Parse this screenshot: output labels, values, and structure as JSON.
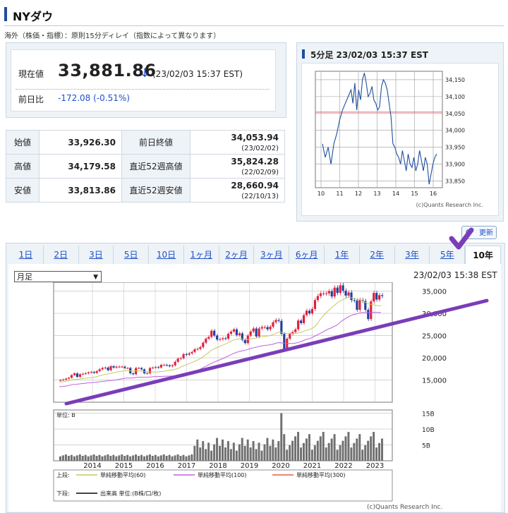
{
  "header": {
    "title": "NYダウ"
  },
  "subnote": "海外（株価・指標）：原則15分ディレイ（指数によって異なります）",
  "price": {
    "label_now": "現在値",
    "value": "33,881.86",
    "arrow": "↓",
    "time": "(23/02/03 15:37 EST)",
    "label_prev": "前日比",
    "diff": "-172.08 (-0.51%)"
  },
  "stats": [
    {
      "l1": "始値",
      "v1": "33,926.30",
      "l2": "前日終値",
      "v2": "34,053.94",
      "d2": "(23/02/02)"
    },
    {
      "l1": "高値",
      "v1": "34,179.58",
      "l2": "直近52週高値",
      "v2": "35,824.28",
      "d2": "(22/02/09)"
    },
    {
      "l1": "安値",
      "v1": "33,813.86",
      "l2": "直近52週安値",
      "v2": "28,660.94",
      "d2": "(22/10/13)"
    }
  ],
  "mini_chart": {
    "title": "5分足 23/02/03 15:37 EST",
    "y_ticks": [
      "34,150",
      "34,100",
      "34,050",
      "34,000",
      "33,950",
      "33,900",
      "33,850"
    ],
    "x_ticks": [
      "10",
      "11",
      "12",
      "13",
      "14",
      "15",
      "16"
    ],
    "credit": "(c)Quants Research Inc.",
    "prev_close_line": 34053.94,
    "ylim": [
      33830,
      34175
    ]
  },
  "refresh": {
    "label": "更新"
  },
  "tabs": [
    "1日",
    "2日",
    "3日",
    "5日",
    "10日",
    "1ヶ月",
    "2ヶ月",
    "3ヶ月",
    "6ヶ月",
    "1年",
    "2年",
    "3年",
    "5年",
    "10年"
  ],
  "active_tab": "10年",
  "big_chart": {
    "mode": "月足",
    "time": "23/02/03 15:38 EST",
    "y_ticks": [
      "35,000",
      "30,000",
      "25,000",
      "20,000",
      "15,000"
    ],
    "x_ticks": [
      "2014",
      "2015",
      "2016",
      "2017",
      "2018",
      "2019",
      "2020",
      "2021",
      "2022",
      "2023"
    ],
    "vol_unit": "単位: B",
    "vol_ticks": [
      "15B",
      "10B",
      "5B"
    ],
    "legend_upper_label": "上段:",
    "legend_upper": [
      "単純移動平均(60)",
      "単純移動平均(100)",
      "単純移動平均(300)"
    ],
    "legend_lower_label": "下段:",
    "legend_lower": "出来高 単位:(B株/口/枚)",
    "credit": "(c)Quants Research Inc.",
    "colors": {
      "ma60": "#c8c860",
      "ma100": "#c060e0",
      "ma300": "#e06040",
      "up": "#e0203c",
      "down": "#2040a0",
      "vol": "#707070"
    }
  },
  "annotation": {
    "color": "#7a3db8"
  }
}
